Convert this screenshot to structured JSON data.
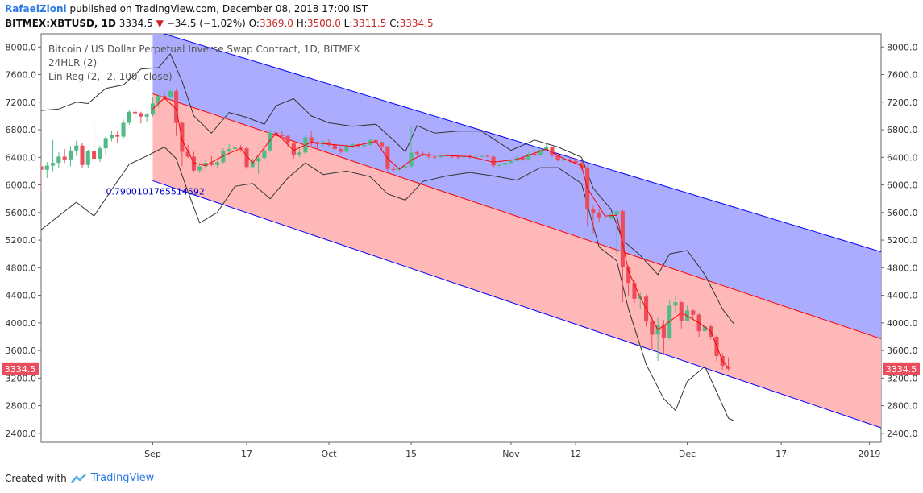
{
  "header": {
    "author": "RafaelZioni",
    "published": "published on TradingView.com, December 08, 2018 17:00 IST",
    "symbol": "BITMEX:XBTUSD, 1D",
    "last": "3334.5",
    "change": "−34.5 (−1.02%)",
    "open_label": "O:",
    "open": "3369.0",
    "high_label": "H:",
    "high": "3500.0",
    "low_label": "L:",
    "low": "3311.5",
    "close_label": "C:",
    "close": "3334.5"
  },
  "legend": {
    "title": "Bitcoin / US Dollar Perpetual Inverse Swap Contract, 1D, BITMEX",
    "indicator1": "24HLR (2)",
    "indicator2": "Lin Reg (2, -2, 100, close)"
  },
  "footer": {
    "created_with": "Created with",
    "brand": "TradingView"
  },
  "colors": {
    "up": "#53b987",
    "down": "#eb4d5c",
    "upper_fill": "#a8a8ff",
    "lower_fill": "#ffb4b4",
    "channel_edge": "#0000ff",
    "channel_mid": "#ff0000",
    "envelope": "#333333",
    "ma": "#ff0000"
  },
  "chart_data": {
    "type": "candlestick",
    "title": "Bitcoin / US Dollar Perpetual Inverse Swap Contract, 1D, BITMEX",
    "price_axis_ticks": [
      "8000.0",
      "7600.0",
      "7200.0",
      "6800.0",
      "6400.0",
      "6000.0",
      "5600.0",
      "5200.0",
      "4800.0",
      "4400.0",
      "4000.0",
      "3600.0",
      "3200.0",
      "2800.0",
      "2400.0"
    ],
    "time_axis_ticks": [
      "Sep",
      "17",
      "Oct",
      "15",
      "Nov",
      "12",
      "Dec",
      "17",
      "2019"
    ],
    "time_axis_dates": [
      "2018-09-01",
      "2018-09-17",
      "2018-10-01",
      "2018-10-15",
      "2018-11-01",
      "2018-11-12",
      "2018-12-01",
      "2018-12-17",
      "2019-01-01"
    ],
    "ylim": [
      2270,
      8190
    ],
    "xlim": [
      "2018-08-13",
      "2019-01-03"
    ],
    "last_price": "3334.5",
    "correlation_label": "0.7900101765514592",
    "regression_channel": {
      "start_date": "2018-09-01",
      "end_date": "2019-01-03",
      "upper": [
        8240,
        5030
      ],
      "middle": [
        7320,
        3770
      ],
      "lower": [
        6060,
        2480
      ]
    },
    "candles": [
      [
        "2018-08-13",
        6270,
        6350,
        5900,
        6220
      ],
      [
        "2018-08-14",
        6220,
        6330,
        6100,
        6280
      ],
      [
        "2018-08-15",
        6280,
        6650,
        6200,
        6320
      ],
      [
        "2018-08-16",
        6320,
        6470,
        6250,
        6410
      ],
      [
        "2018-08-17",
        6410,
        6520,
        6320,
        6370
      ],
      [
        "2018-08-18",
        6370,
        6560,
        6270,
        6500
      ],
      [
        "2018-08-19",
        6500,
        6640,
        6420,
        6570
      ],
      [
        "2018-08-20",
        6570,
        6610,
        6250,
        6290
      ],
      [
        "2018-08-21",
        6290,
        6510,
        6250,
        6490
      ],
      [
        "2018-08-22",
        6490,
        6900,
        6300,
        6380
      ],
      [
        "2018-08-23",
        6380,
        6570,
        6330,
        6530
      ],
      [
        "2018-08-24",
        6530,
        6700,
        6430,
        6680
      ],
      [
        "2018-08-25",
        6680,
        6790,
        6630,
        6720
      ],
      [
        "2018-08-26",
        6720,
        6790,
        6600,
        6700
      ],
      [
        "2018-08-27",
        6700,
        6950,
        6670,
        6900
      ],
      [
        "2018-08-28",
        6900,
        7080,
        6870,
        7060
      ],
      [
        "2018-08-29",
        7060,
        7120,
        6980,
        7040
      ],
      [
        "2018-08-30",
        7040,
        7060,
        6890,
        6990
      ],
      [
        "2018-08-31",
        6990,
        7040,
        6920,
        7020
      ],
      [
        "2018-09-01",
        7020,
        7270,
        6990,
        7180
      ],
      [
        "2018-09-02",
        7180,
        7320,
        7120,
        7290
      ],
      [
        "2018-09-03",
        7290,
        7350,
        7230,
        7270
      ],
      [
        "2018-09-04",
        7270,
        7380,
        7220,
        7360
      ],
      [
        "2018-09-05",
        7360,
        7390,
        6710,
        6900
      ],
      [
        "2018-09-06",
        6900,
        6920,
        6270,
        6480
      ],
      [
        "2018-09-07",
        6480,
        6580,
        6390,
        6410
      ],
      [
        "2018-09-08",
        6410,
        6480,
        6180,
        6210
      ],
      [
        "2018-09-09",
        6210,
        6320,
        6170,
        6270
      ],
      [
        "2018-09-10",
        6270,
        6380,
        6240,
        6320
      ],
      [
        "2018-09-11",
        6320,
        6420,
        6270,
        6290
      ],
      [
        "2018-09-12",
        6290,
        6350,
        6240,
        6330
      ],
      [
        "2018-09-13",
        6330,
        6530,
        6310,
        6490
      ],
      [
        "2018-09-14",
        6490,
        6590,
        6440,
        6520
      ],
      [
        "2018-09-15",
        6520,
        6580,
        6480,
        6540
      ],
      [
        "2018-09-16",
        6540,
        6580,
        6480,
        6530
      ],
      [
        "2018-09-17",
        6530,
        6560,
        6230,
        6260
      ],
      [
        "2018-09-18",
        6260,
        6380,
        6240,
        6340
      ],
      [
        "2018-09-19",
        6340,
        6420,
        6160,
        6390
      ],
      [
        "2018-09-20",
        6390,
        6530,
        6370,
        6500
      ],
      [
        "2018-09-21",
        6500,
        6800,
        6480,
        6760
      ],
      [
        "2018-09-22",
        6760,
        6800,
        6680,
        6720
      ],
      [
        "2018-09-23",
        6720,
        6790,
        6680,
        6710
      ],
      [
        "2018-09-24",
        6710,
        6720,
        6550,
        6600
      ],
      [
        "2018-09-25",
        6600,
        6620,
        6380,
        6440
      ],
      [
        "2018-09-26",
        6440,
        6540,
        6400,
        6470
      ],
      [
        "2018-09-27",
        6470,
        6720,
        6450,
        6690
      ],
      [
        "2018-09-28",
        6690,
        6780,
        6550,
        6620
      ],
      [
        "2018-09-29",
        6620,
        6630,
        6510,
        6590
      ],
      [
        "2018-09-30",
        6590,
        6650,
        6550,
        6620
      ],
      [
        "2018-10-01",
        6620,
        6670,
        6550,
        6580
      ],
      [
        "2018-10-02",
        6580,
        6600,
        6490,
        6520
      ],
      [
        "2018-10-03",
        6520,
        6540,
        6450,
        6480
      ],
      [
        "2018-10-04",
        6480,
        6600,
        6470,
        6570
      ],
      [
        "2018-10-05",
        6570,
        6620,
        6530,
        6590
      ],
      [
        "2018-10-06",
        6590,
        6600,
        6540,
        6560
      ],
      [
        "2018-10-07",
        6560,
        6600,
        6520,
        6580
      ],
      [
        "2018-10-08",
        6580,
        6680,
        6570,
        6650
      ],
      [
        "2018-10-09",
        6650,
        6660,
        6600,
        6620
      ],
      [
        "2018-10-10",
        6620,
        6630,
        6520,
        6560
      ],
      [
        "2018-10-11",
        6560,
        6560,
        6200,
        6230
      ],
      [
        "2018-10-12",
        6230,
        6270,
        6190,
        6220
      ],
      [
        "2018-10-13",
        6220,
        6260,
        6200,
        6240
      ],
      [
        "2018-10-14",
        6240,
        6300,
        6210,
        6270
      ],
      [
        "2018-10-15",
        6270,
        6850,
        6250,
        6470
      ],
      [
        "2018-10-16",
        6470,
        6500,
        6420,
        6450
      ],
      [
        "2018-10-17",
        6450,
        6480,
        6420,
        6440
      ],
      [
        "2018-10-18",
        6440,
        6470,
        6380,
        6410
      ],
      [
        "2018-10-19",
        6410,
        6430,
        6380,
        6400
      ],
      [
        "2018-10-20",
        6400,
        6430,
        6390,
        6420
      ],
      [
        "2018-10-21",
        6420,
        6450,
        6400,
        6430
      ],
      [
        "2018-10-22",
        6430,
        6440,
        6390,
        6410
      ],
      [
        "2018-10-23",
        6410,
        6420,
        6380,
        6400
      ],
      [
        "2018-10-24",
        6400,
        6440,
        6390,
        6420
      ],
      [
        "2018-10-25",
        6420,
        6430,
        6380,
        6400
      ],
      [
        "2018-10-26",
        6400,
        6420,
        6390,
        6410
      ],
      [
        "2018-10-27",
        6410,
        6430,
        6400,
        6420
      ],
      [
        "2018-10-28",
        6420,
        6430,
        6400,
        6410
      ],
      [
        "2018-10-29",
        6410,
        6420,
        6250,
        6280
      ],
      [
        "2018-10-30",
        6280,
        6300,
        6260,
        6290
      ],
      [
        "2018-10-31",
        6290,
        6340,
        6270,
        6320
      ],
      [
        "2018-11-01",
        6320,
        6380,
        6310,
        6350
      ],
      [
        "2018-11-02",
        6350,
        6420,
        6340,
        6390
      ],
      [
        "2018-11-03",
        6390,
        6410,
        6350,
        6370
      ],
      [
        "2018-11-04",
        6370,
        6480,
        6350,
        6450
      ],
      [
        "2018-11-05",
        6450,
        6480,
        6410,
        6430
      ],
      [
        "2018-11-06",
        6430,
        6540,
        6420,
        6510
      ],
      [
        "2018-11-07",
        6510,
        6590,
        6490,
        6550
      ],
      [
        "2018-11-08",
        6550,
        6560,
        6400,
        6430
      ],
      [
        "2018-11-09",
        6430,
        6450,
        6340,
        6360
      ],
      [
        "2018-11-10",
        6360,
        6400,
        6340,
        6370
      ],
      [
        "2018-11-11",
        6370,
        6410,
        6320,
        6350
      ],
      [
        "2018-11-12",
        6350,
        6390,
        6300,
        6320
      ],
      [
        "2018-11-13",
        6320,
        6340,
        6220,
        6240
      ],
      [
        "2018-11-14",
        6240,
        6280,
        5400,
        5650
      ],
      [
        "2018-11-15",
        5650,
        5700,
        5300,
        5600
      ],
      [
        "2018-11-16",
        5600,
        5640,
        5460,
        5530
      ],
      [
        "2018-11-17",
        5530,
        5580,
        5480,
        5520
      ],
      [
        "2018-11-18",
        5520,
        5600,
        5490,
        5570
      ],
      [
        "2018-11-19",
        5570,
        5590,
        4990,
        5620
      ],
      [
        "2018-11-20",
        5620,
        5640,
        4300,
        4810
      ],
      [
        "2018-11-21",
        4810,
        4830,
        4380,
        4580
      ],
      [
        "2018-11-22",
        4580,
        4620,
        4290,
        4350
      ],
      [
        "2018-11-23",
        4350,
        4450,
        4200,
        4380
      ],
      [
        "2018-11-24",
        4380,
        4410,
        3950,
        4020
      ],
      [
        "2018-11-25",
        4020,
        4110,
        3600,
        3830
      ],
      [
        "2018-11-26",
        3830,
        4080,
        3450,
        3970
      ],
      [
        "2018-11-27",
        3970,
        4040,
        3530,
        3780
      ],
      [
        "2018-11-28",
        3780,
        4340,
        3760,
        4250
      ],
      [
        "2018-11-29",
        4250,
        4390,
        4150,
        4300
      ],
      [
        "2018-11-30",
        4300,
        4310,
        3920,
        4030
      ],
      [
        "2018-12-01",
        4030,
        4250,
        4020,
        4180
      ],
      [
        "2018-12-02",
        4180,
        4200,
        4050,
        4120
      ],
      [
        "2018-12-03",
        4120,
        4140,
        3800,
        3880
      ],
      [
        "2018-12-04",
        3880,
        4010,
        3820,
        3950
      ],
      [
        "2018-12-05",
        3950,
        3980,
        3760,
        3800
      ],
      [
        "2018-12-06",
        3800,
        3820,
        3450,
        3520
      ],
      [
        "2018-12-07",
        3520,
        3560,
        3320,
        3380
      ],
      [
        "2018-12-08",
        3369,
        3500,
        3311.5,
        3334.5
      ]
    ],
    "moving_average": [
      [
        "2018-09-01",
        7100
      ],
      [
        "2018-09-03",
        7260
      ],
      [
        "2018-09-05",
        7100
      ],
      [
        "2018-09-06",
        6650
      ],
      [
        "2018-09-08",
        6320
      ],
      [
        "2018-09-10",
        6280
      ],
      [
        "2018-09-13",
        6420
      ],
      [
        "2018-09-16",
        6530
      ],
      [
        "2018-09-18",
        6320
      ],
      [
        "2018-09-21",
        6650
      ],
      [
        "2018-09-22",
        6750
      ],
      [
        "2018-09-25",
        6500
      ],
      [
        "2018-09-28",
        6620
      ],
      [
        "2018-10-01",
        6590
      ],
      [
        "2018-10-05",
        6560
      ],
      [
        "2018-10-09",
        6630
      ],
      [
        "2018-10-11",
        6380
      ],
      [
        "2018-10-13",
        6230
      ],
      [
        "2018-10-15",
        6360
      ],
      [
        "2018-10-17",
        6440
      ],
      [
        "2018-10-25",
        6410
      ],
      [
        "2018-10-29",
        6330
      ],
      [
        "2018-11-02",
        6370
      ],
      [
        "2018-11-07",
        6520
      ],
      [
        "2018-11-10",
        6380
      ],
      [
        "2018-11-13",
        6280
      ],
      [
        "2018-11-14",
        5950
      ],
      [
        "2018-11-17",
        5550
      ],
      [
        "2018-11-19",
        5560
      ],
      [
        "2018-11-21",
        4750
      ],
      [
        "2018-11-23",
        4370
      ],
      [
        "2018-11-26",
        3900
      ],
      [
        "2018-11-28",
        4020
      ],
      [
        "2018-11-30",
        4150
      ],
      [
        "2018-12-03",
        4000
      ],
      [
        "2018-12-05",
        3880
      ],
      [
        "2018-12-07",
        3450
      ],
      [
        "2018-12-08",
        3350
      ]
    ],
    "upper_envelope": [
      [
        "2018-08-13",
        7080
      ],
      [
        "2018-08-16",
        7100
      ],
      [
        "2018-08-19",
        7200
      ],
      [
        "2018-08-21",
        7180
      ],
      [
        "2018-08-24",
        7400
      ],
      [
        "2018-08-27",
        7450
      ],
      [
        "2018-08-30",
        7680
      ],
      [
        "2018-09-02",
        7700
      ],
      [
        "2018-09-04",
        7900
      ],
      [
        "2018-09-06",
        7500
      ],
      [
        "2018-09-08",
        7000
      ],
      [
        "2018-09-11",
        6750
      ],
      [
        "2018-09-14",
        7050
      ],
      [
        "2018-09-17",
        6980
      ],
      [
        "2018-09-20",
        6880
      ],
      [
        "2018-09-22",
        7150
      ],
      [
        "2018-09-25",
        7250
      ],
      [
        "2018-09-28",
        7000
      ],
      [
        "2018-10-01",
        6900
      ],
      [
        "2018-10-05",
        6850
      ],
      [
        "2018-10-09",
        6880
      ],
      [
        "2018-10-12",
        6650
      ],
      [
        "2018-10-14",
        6480
      ],
      [
        "2018-10-16",
        6860
      ],
      [
        "2018-10-19",
        6750
      ],
      [
        "2018-10-23",
        6780
      ],
      [
        "2018-10-27",
        6780
      ],
      [
        "2018-11-01",
        6500
      ],
      [
        "2018-11-05",
        6650
      ],
      [
        "2018-11-09",
        6550
      ],
      [
        "2018-11-13",
        6400
      ],
      [
        "2018-11-15",
        5950
      ],
      [
        "2018-11-18",
        5650
      ],
      [
        "2018-11-20",
        5200
      ],
      [
        "2018-11-23",
        4980
      ],
      [
        "2018-11-26",
        4700
      ],
      [
        "2018-11-28",
        5000
      ],
      [
        "2018-12-01",
        5050
      ],
      [
        "2018-12-04",
        4700
      ],
      [
        "2018-12-07",
        4200
      ],
      [
        "2018-12-09",
        3980
      ]
    ],
    "lower_envelope": [
      [
        "2018-08-13",
        5350
      ],
      [
        "2018-08-16",
        5550
      ],
      [
        "2018-08-19",
        5750
      ],
      [
        "2018-08-22",
        5550
      ],
      [
        "2018-08-25",
        5930
      ],
      [
        "2018-08-28",
        6300
      ],
      [
        "2018-08-31",
        6420
      ],
      [
        "2018-09-03",
        6550
      ],
      [
        "2018-09-05",
        6380
      ],
      [
        "2018-09-07",
        5900
      ],
      [
        "2018-09-09",
        5450
      ],
      [
        "2018-09-12",
        5600
      ],
      [
        "2018-09-15",
        5980
      ],
      [
        "2018-09-18",
        6020
      ],
      [
        "2018-09-21",
        5800
      ],
      [
        "2018-09-24",
        6100
      ],
      [
        "2018-09-27",
        6320
      ],
      [
        "2018-09-30",
        6150
      ],
      [
        "2018-10-04",
        6200
      ],
      [
        "2018-10-08",
        6120
      ],
      [
        "2018-10-11",
        5870
      ],
      [
        "2018-10-14",
        5780
      ],
      [
        "2018-10-17",
        6050
      ],
      [
        "2018-10-21",
        6130
      ],
      [
        "2018-10-25",
        6180
      ],
      [
        "2018-10-29",
        6130
      ],
      [
        "2018-11-02",
        6070
      ],
      [
        "2018-11-06",
        6250
      ],
      [
        "2018-11-09",
        6250
      ],
      [
        "2018-11-13",
        6020
      ],
      [
        "2018-11-16",
        5100
      ],
      [
        "2018-11-19",
        4900
      ],
      [
        "2018-11-21",
        4200
      ],
      [
        "2018-11-24",
        3400
      ],
      [
        "2018-11-27",
        2900
      ],
      [
        "2018-11-29",
        2730
      ],
      [
        "2018-12-01",
        3150
      ],
      [
        "2018-12-04",
        3370
      ],
      [
        "2018-12-06",
        3000
      ],
      [
        "2018-12-08",
        2620
      ],
      [
        "2018-12-09",
        2580
      ]
    ]
  }
}
